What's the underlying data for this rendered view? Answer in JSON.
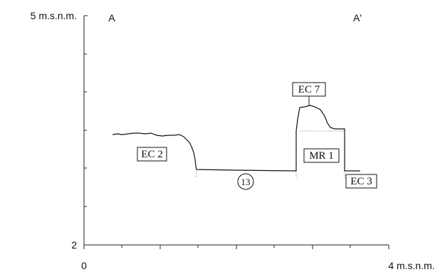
{
  "y_axis": {
    "top_label": "5 m.s.n.m.",
    "bottom_label": "2"
  },
  "x_axis": {
    "left_label": "0",
    "right_label": "4 m.s.n.m."
  },
  "section_labels": {
    "start": "A",
    "end": "A'"
  },
  "units": [
    {
      "id": "ec2",
      "label": "EC 2"
    },
    {
      "id": "ec7",
      "label": "EC 7"
    },
    {
      "id": "mr1",
      "label": "MR 1"
    },
    {
      "id": "ec3",
      "label": "EC 3"
    }
  ],
  "circled_label": "13"
}
